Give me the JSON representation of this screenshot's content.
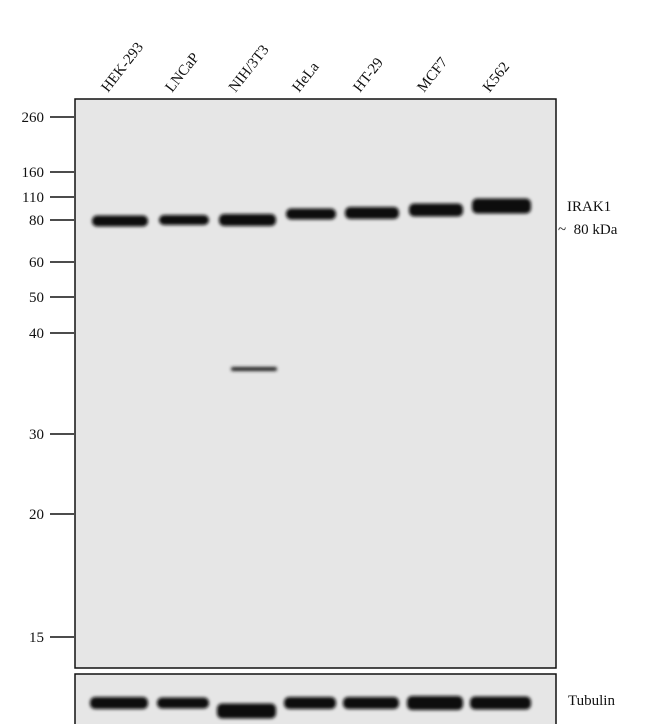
{
  "lanes": [
    "HEK-293",
    "LNCaP",
    "NIH/3T3",
    "HeLa",
    "HT-29",
    "MCF7",
    "K562"
  ],
  "markers": [
    "260",
    "160",
    "110",
    "80",
    "60",
    "50",
    "40",
    "30",
    "20",
    "15"
  ],
  "annotations": {
    "target": "IRAK1",
    "size": "~  80 kDa",
    "loading_control": "Tubulin"
  }
}
